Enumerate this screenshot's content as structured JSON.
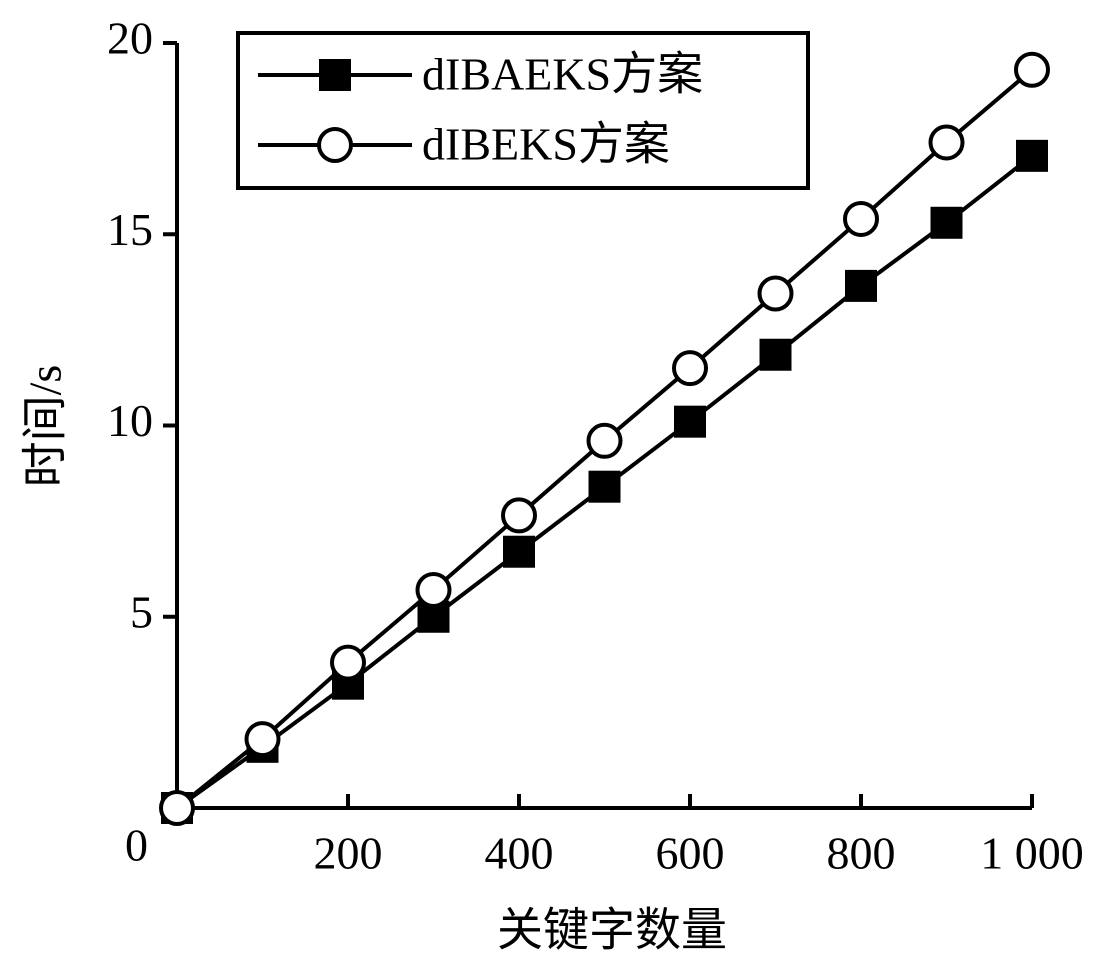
{
  "chart_data": {
    "type": "line",
    "x_label": "关键字数量",
    "y_label": "时间/s",
    "x": [
      0,
      100,
      200,
      300,
      400,
      500,
      600,
      700,
      800,
      900,
      1000
    ],
    "series": [
      {
        "name": "dIBAEKS方案",
        "color": "#000000",
        "marker": "square",
        "values": [
          0,
          1.6,
          3.25,
          5.0,
          6.7,
          8.4,
          10.1,
          11.85,
          13.65,
          15.3,
          17.05
        ]
      },
      {
        "name": "dIBEKS方案",
        "color": "#000000",
        "marker": "circle",
        "values": [
          0,
          1.8,
          3.8,
          5.7,
          7.65,
          9.6,
          11.5,
          13.45,
          15.4,
          17.4,
          19.3
        ]
      }
    ],
    "xlim": [
      0,
      1000
    ],
    "ylim": [
      0,
      20
    ],
    "xticks": [
      200,
      400,
      600,
      800,
      {
        "value": 1000,
        "label": "1 000"
      }
    ],
    "yticks": [
      0,
      5,
      10,
      15,
      20
    ],
    "grid": false,
    "legend": "upper left"
  }
}
